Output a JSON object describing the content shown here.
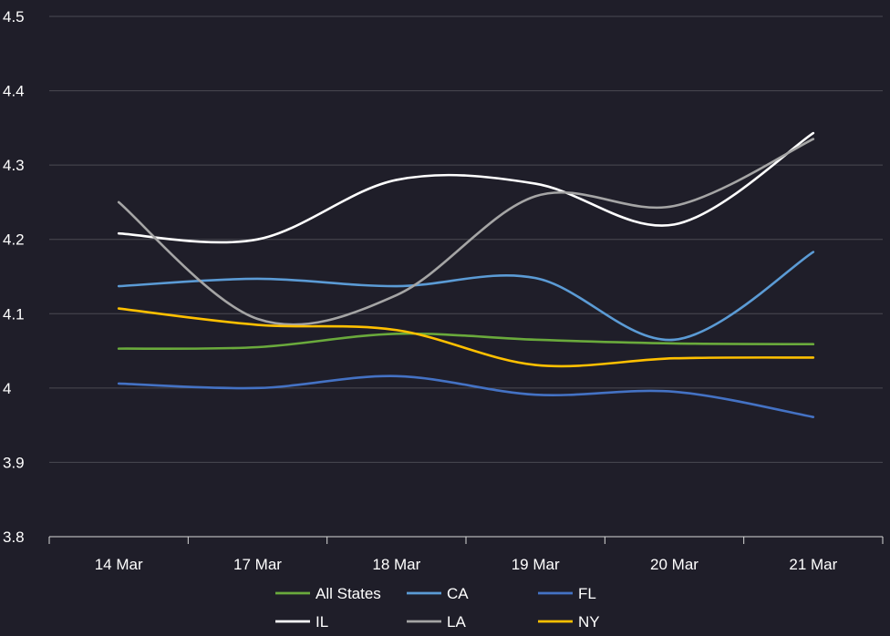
{
  "chart_data": {
    "type": "line",
    "title": "",
    "xlabel": "",
    "ylabel": "",
    "categories": [
      "14 Mar",
      "17 Mar",
      "18 Mar",
      "19 Mar",
      "20 Mar",
      "21 Mar"
    ],
    "ylim": [
      3.8,
      4.5
    ],
    "yticks": [
      3.8,
      3.9,
      4,
      4.1,
      4.2,
      4.3,
      4.4,
      4.5
    ],
    "ytick_labels": [
      "3.8",
      "3.9",
      "4",
      "4.1",
      "4.2",
      "4.3",
      "4.4",
      "4.5"
    ],
    "grid": true,
    "smooth": true,
    "legend_position": "bottom",
    "series": [
      {
        "name": "All States",
        "color": "#6aaa3c",
        "values": [
          4.053,
          4.055,
          4.073,
          4.065,
          4.06,
          4.059
        ]
      },
      {
        "name": "CA",
        "color": "#5b9bd5",
        "values": [
          4.137,
          4.147,
          4.137,
          4.148,
          4.065,
          4.183
        ]
      },
      {
        "name": "FL",
        "color": "#4472c4",
        "values": [
          4.006,
          4.0,
          4.016,
          3.991,
          3.995,
          3.961
        ]
      },
      {
        "name": "IL",
        "color": "#ffffff",
        "values": [
          4.208,
          4.2,
          4.28,
          4.275,
          4.22,
          4.343
        ]
      },
      {
        "name": "LA",
        "color": "#a5a5a5",
        "values": [
          4.25,
          4.093,
          4.125,
          4.258,
          4.245,
          4.335
        ]
      },
      {
        "name": "NY",
        "color": "#ffc000",
        "values": [
          4.107,
          4.085,
          4.078,
          4.031,
          4.04,
          4.041
        ]
      }
    ]
  }
}
